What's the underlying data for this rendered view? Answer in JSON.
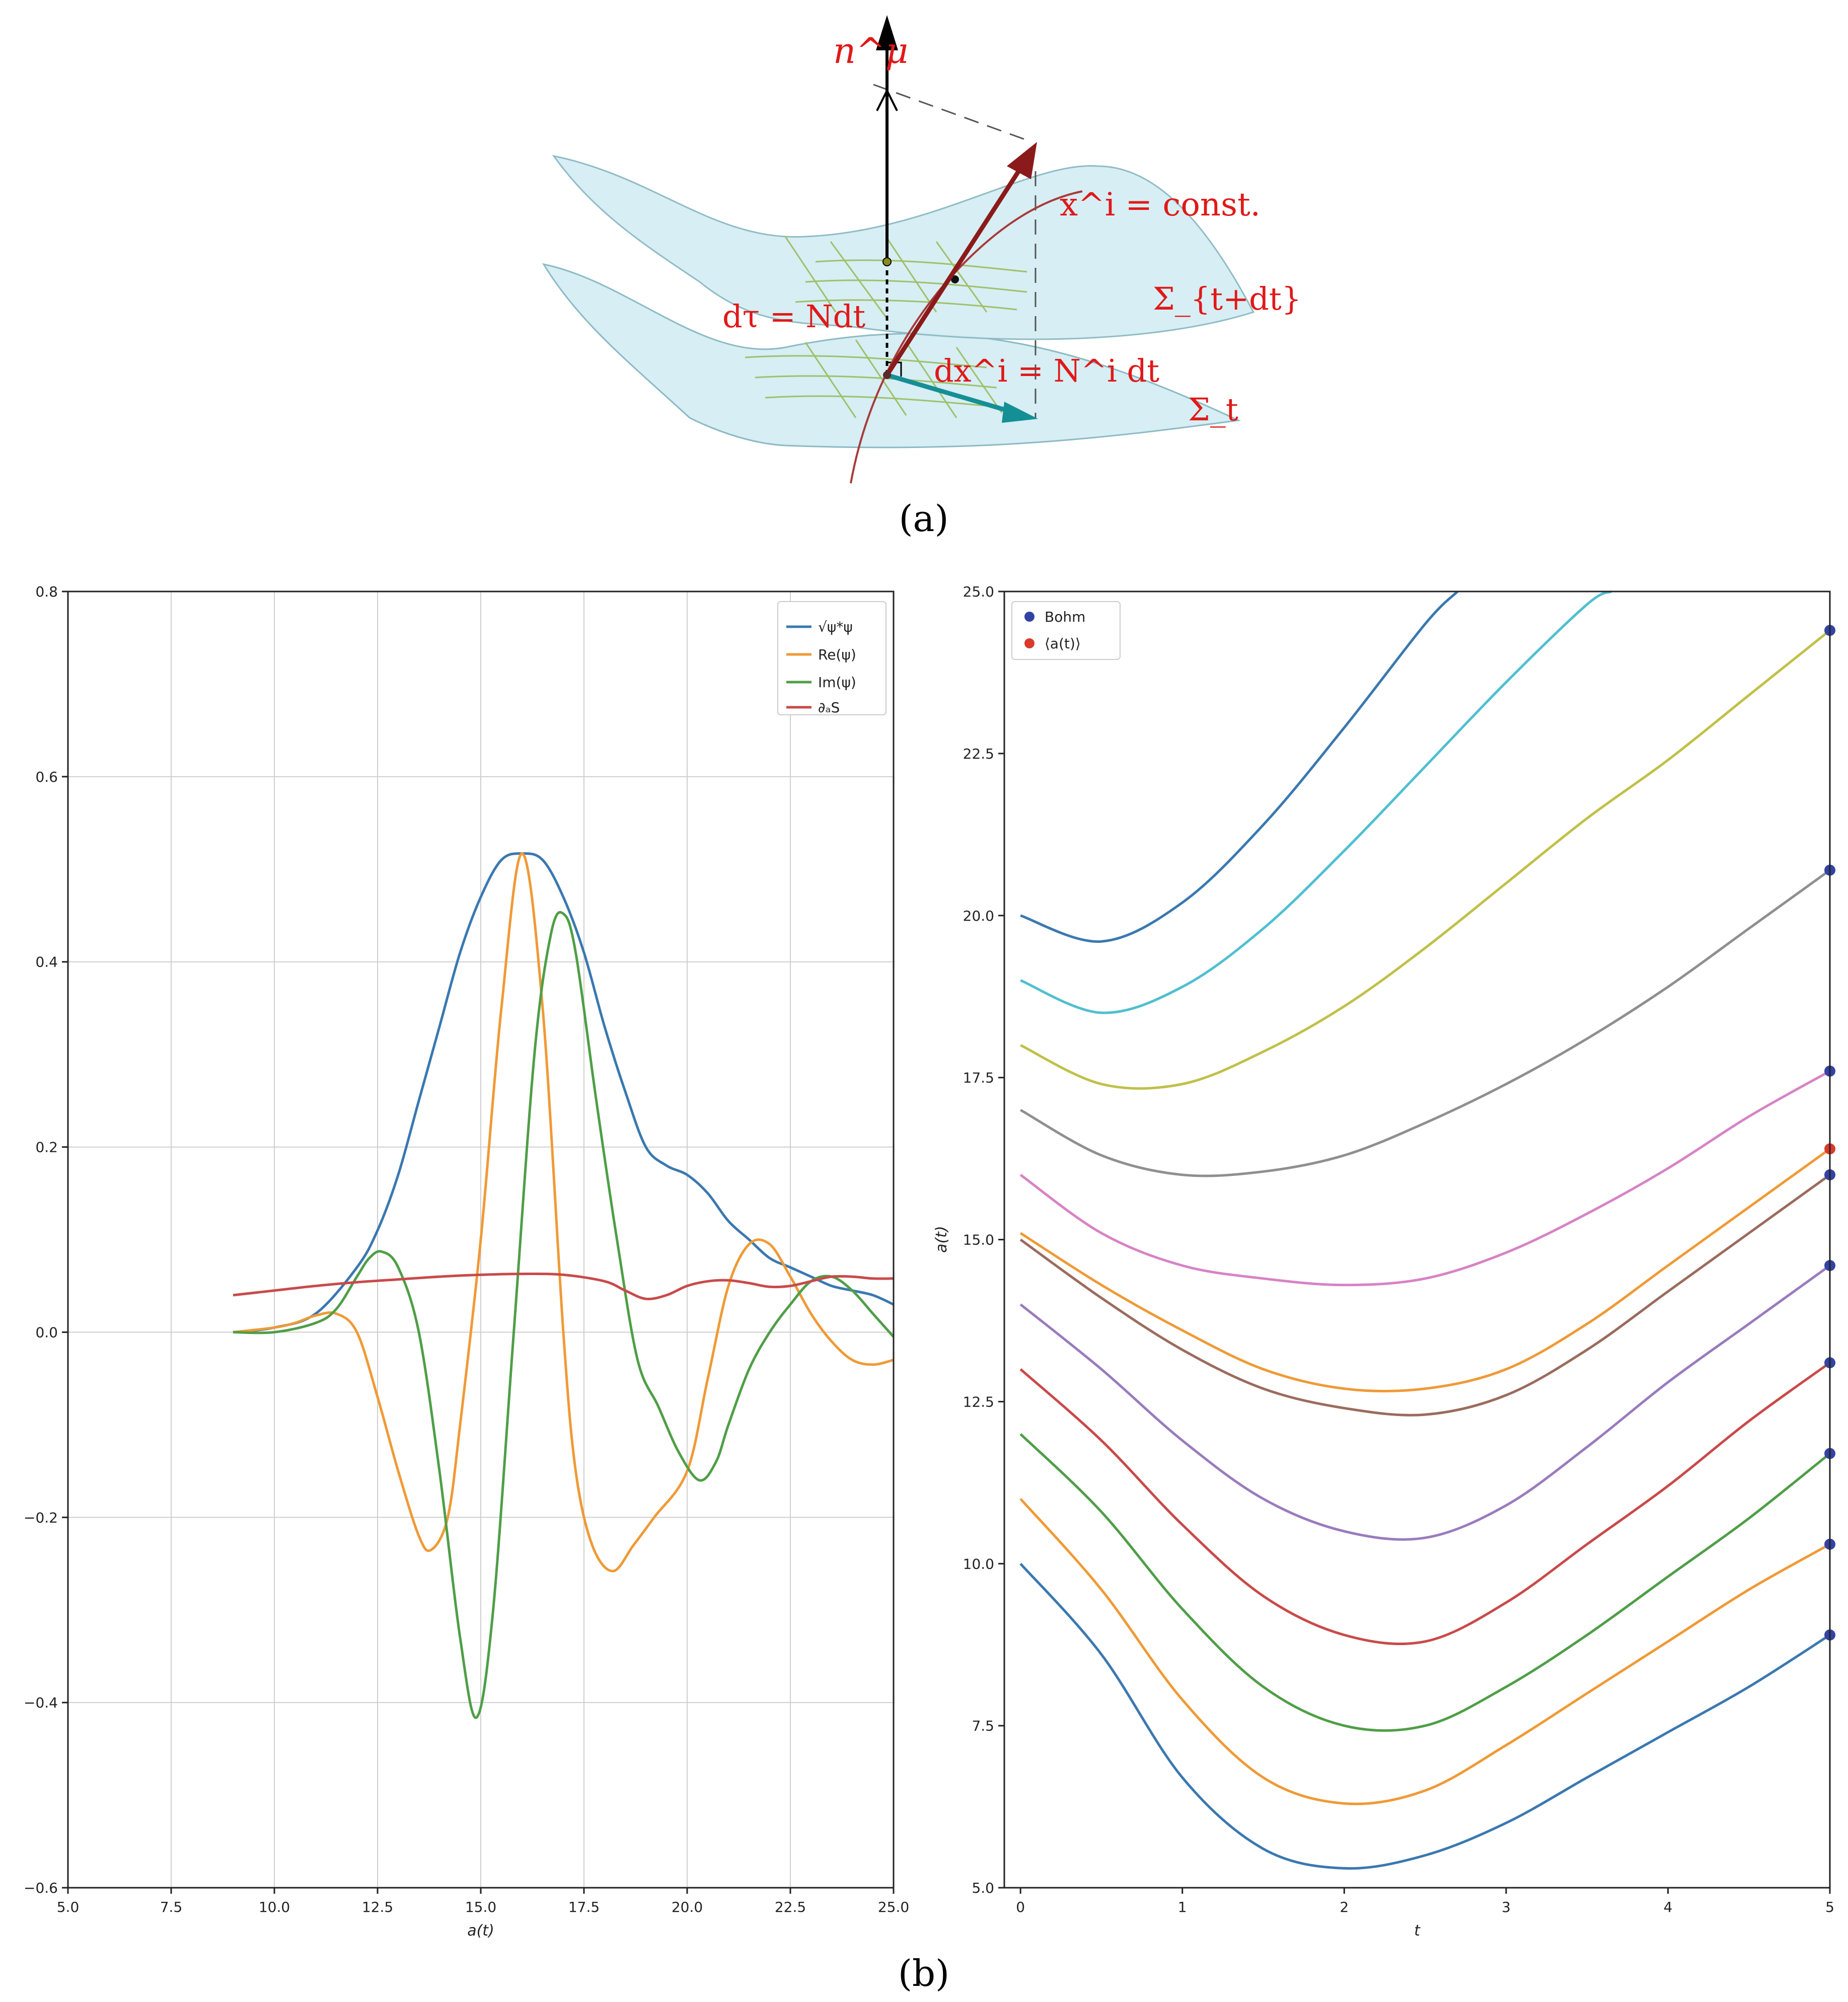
{
  "panel_labels": {
    "a": "(a)",
    "b": "(b)"
  },
  "diagram": {
    "labels": {
      "normal": "n^μ",
      "worldline": "x^i = const.",
      "lapse": "dτ = Ndt",
      "shift": "dx^i = N^i dt",
      "sigma_upper": "Σ_{t+dt}",
      "sigma_lower": "Σ_t"
    },
    "colors": {
      "surface": "#d6eef4",
      "grid": "#9fc06a",
      "red_arrow": "#8b1a1a",
      "teal_arrow": "#148f95",
      "label": "#e01919"
    }
  },
  "chart_data": [
    {
      "type": "line",
      "xlabel": "a(t)",
      "ylabel": "",
      "xlim": [
        5.0,
        25.0
      ],
      "ylim": [
        -0.6,
        0.8
      ],
      "xticks": [
        "5.0",
        "7.5",
        "10.0",
        "12.5",
        "15.0",
        "17.5",
        "20.0",
        "22.5",
        "25.0"
      ],
      "yticks": [
        "−0.6",
        "−0.4",
        "−0.2",
        "0.0",
        "0.2",
        "0.4",
        "0.6",
        "0.8"
      ],
      "grid": true,
      "legend": "top-right",
      "series": [
        {
          "name": "√ψ*ψ",
          "color": "#3a78b0",
          "x": [
            9,
            10,
            11,
            12,
            12.5,
            13,
            13.5,
            14,
            14.5,
            15,
            15.5,
            16,
            16.5,
            17,
            17.5,
            18,
            18.5,
            19,
            19.5,
            20,
            20.5,
            21,
            21.5,
            22,
            22.5,
            23,
            23.5,
            24,
            24.5,
            25
          ],
          "y": [
            0.0,
            0.005,
            0.02,
            0.07,
            0.11,
            0.17,
            0.25,
            0.33,
            0.41,
            0.47,
            0.51,
            0.517,
            0.51,
            0.47,
            0.41,
            0.33,
            0.26,
            0.2,
            0.18,
            0.17,
            0.15,
            0.12,
            0.1,
            0.08,
            0.07,
            0.06,
            0.05,
            0.045,
            0.04,
            0.03
          ]
        },
        {
          "name": "Re(ψ)",
          "color": "#ef9a36",
          "x": [
            9,
            10,
            10.5,
            11,
            11.5,
            12,
            12.5,
            13,
            13.5,
            13.8,
            14.2,
            14.5,
            15,
            15.5,
            16,
            16.5,
            17,
            17.3,
            17.7,
            18.2,
            18.7,
            19.2,
            20,
            20.5,
            21,
            21.5,
            22,
            22.5,
            23,
            23.5,
            24,
            24.5,
            25
          ],
          "y": [
            0.0,
            0.005,
            0.01,
            0.018,
            0.02,
            0.0,
            -0.07,
            -0.15,
            -0.22,
            -0.235,
            -0.2,
            -0.1,
            0.1,
            0.35,
            0.517,
            0.35,
            0.0,
            -0.15,
            -0.23,
            -0.258,
            -0.23,
            -0.2,
            -0.15,
            -0.05,
            0.05,
            0.095,
            0.095,
            0.06,
            0.02,
            -0.01,
            -0.03,
            -0.035,
            -0.03
          ]
        },
        {
          "name": "Im(ψ)",
          "color": "#4f9e47",
          "x": [
            9,
            10,
            11,
            11.5,
            12,
            12.3,
            12.6,
            13,
            13.5,
            14,
            14.5,
            14.9,
            15.3,
            15.8,
            16.3,
            16.7,
            17,
            17.3,
            17.8,
            18.3,
            18.8,
            19.3,
            19.8,
            20.3,
            20.7,
            21,
            21.5,
            22,
            22.5,
            23,
            23.5,
            24,
            24.5,
            25
          ],
          "y": [
            0.0,
            0.0,
            0.01,
            0.025,
            0.06,
            0.08,
            0.087,
            0.07,
            0.0,
            -0.15,
            -0.33,
            -0.416,
            -0.3,
            0.0,
            0.3,
            0.43,
            0.452,
            0.41,
            0.25,
            0.1,
            -0.03,
            -0.08,
            -0.13,
            -0.16,
            -0.14,
            -0.1,
            -0.04,
            0.0,
            0.03,
            0.055,
            0.06,
            0.045,
            0.02,
            -0.005
          ]
        },
        {
          "name": "∂ₐS",
          "color": "#c94a4a",
          "x": [
            9,
            10,
            11,
            12,
            13,
            14,
            15,
            16,
            17,
            18,
            18.5,
            19,
            19.5,
            20,
            20.5,
            21,
            21.5,
            22,
            22.5,
            23,
            23.5,
            24,
            24.5,
            25
          ],
          "y": [
            0.04,
            0.045,
            0.05,
            0.054,
            0.057,
            0.06,
            0.062,
            0.063,
            0.062,
            0.055,
            0.045,
            0.036,
            0.04,
            0.05,
            0.055,
            0.056,
            0.053,
            0.049,
            0.05,
            0.055,
            0.06,
            0.06,
            0.058,
            0.058
          ]
        }
      ]
    },
    {
      "type": "line",
      "xlabel": "t",
      "ylabel": "a(t)",
      "xlim": [
        -0.1,
        5.0
      ],
      "ylim": [
        5.0,
        25.0
      ],
      "xticks": [
        "0",
        "1",
        "2",
        "3",
        "4",
        "5"
      ],
      "yticks": [
        "5.0",
        "7.5",
        "10.0",
        "12.5",
        "15.0",
        "17.5",
        "20.0",
        "22.5",
        "25.0"
      ],
      "grid": false,
      "legend": "top-left",
      "legend_entries": [
        {
          "name": "Bohm",
          "color": "#3443a3"
        },
        {
          "name": "⟨a(t)⟩",
          "color": "#d93a2a"
        }
      ],
      "trajectories": [
        {
          "color": "#3a78b0",
          "t": [
            0,
            0.5,
            1.0,
            1.5,
            2.0,
            2.5,
            3.0,
            3.5,
            4.0,
            4.5,
            5.0
          ],
          "a": [
            10.0,
            8.6,
            6.7,
            5.6,
            5.3,
            5.5,
            6.0,
            6.7,
            7.4,
            8.1,
            8.9
          ]
        },
        {
          "color": "#ef9a36",
          "t": [
            0,
            0.5,
            1.0,
            1.5,
            2.0,
            2.5,
            3.0,
            3.5,
            4.0,
            4.5,
            5.0
          ],
          "a": [
            11.0,
            9.6,
            7.9,
            6.7,
            6.3,
            6.5,
            7.2,
            8.0,
            8.8,
            9.6,
            10.3
          ]
        },
        {
          "color": "#4f9e47",
          "t": [
            0,
            0.5,
            1.0,
            1.5,
            2.0,
            2.5,
            3.0,
            3.5,
            4.0,
            4.5,
            5.0
          ],
          "a": [
            12.0,
            10.8,
            9.3,
            8.1,
            7.5,
            7.5,
            8.1,
            8.9,
            9.8,
            10.7,
            11.7
          ]
        },
        {
          "color": "#c94a4a",
          "t": [
            0,
            0.5,
            1.0,
            1.5,
            2.0,
            2.5,
            3.0,
            3.5,
            4.0,
            4.5,
            5.0
          ],
          "a": [
            13.0,
            11.9,
            10.6,
            9.5,
            8.9,
            8.8,
            9.4,
            10.3,
            11.2,
            12.2,
            13.1
          ]
        },
        {
          "color": "#9a7bbd",
          "t": [
            0,
            0.5,
            1.0,
            1.5,
            2.0,
            2.5,
            3.0,
            3.5,
            4.0,
            4.5,
            5.0
          ],
          "a": [
            14.0,
            13.0,
            11.9,
            11.0,
            10.5,
            10.4,
            10.9,
            11.8,
            12.8,
            13.7,
            14.6
          ]
        },
        {
          "color": "#9b6b5e",
          "t": [
            0,
            0.5,
            1.0,
            1.5,
            2.0,
            2.5,
            3.0,
            3.5,
            4.0,
            4.5,
            5.0
          ],
          "a": [
            15.0,
            14.1,
            13.3,
            12.7,
            12.4,
            12.3,
            12.6,
            13.3,
            14.2,
            15.1,
            16.0
          ]
        },
        {
          "color": "#ef9a36",
          "t": [
            0,
            0.5,
            1.0,
            1.5,
            2.0,
            2.5,
            3.0,
            3.5,
            4.0,
            4.5,
            5.0
          ],
          "a": [
            15.1,
            14.3,
            13.6,
            13.0,
            12.7,
            12.7,
            13.0,
            13.7,
            14.6,
            15.5,
            16.4
          ]
        },
        {
          "color": "#d783c5",
          "t": [
            0,
            0.5,
            1.0,
            1.5,
            2.0,
            2.5,
            3.0,
            3.5,
            4.0,
            4.5,
            5.0
          ],
          "a": [
            16.0,
            15.1,
            14.6,
            14.4,
            14.3,
            14.4,
            14.8,
            15.4,
            16.1,
            16.9,
            17.6
          ]
        },
        {
          "color": "#8f8f8f",
          "t": [
            0,
            0.5,
            1.0,
            1.5,
            2.0,
            2.5,
            3.0,
            3.5,
            4.0,
            4.5,
            5.0
          ],
          "a": [
            17.0,
            16.3,
            16.0,
            16.05,
            16.3,
            16.8,
            17.4,
            18.1,
            18.9,
            19.8,
            20.7
          ]
        },
        {
          "color": "#c0c04a",
          "t": [
            0,
            0.5,
            1.0,
            1.5,
            2.0,
            2.5,
            3.0,
            3.5,
            4.0,
            4.5,
            5.0
          ],
          "a": [
            18.0,
            17.4,
            17.4,
            17.9,
            18.6,
            19.5,
            20.5,
            21.5,
            22.4,
            23.4,
            24.4
          ]
        },
        {
          "color": "#4fbfcf",
          "t": [
            0,
            0.5,
            1.0,
            1.5,
            2.0,
            2.5,
            3.0,
            3.5,
            3.65
          ],
          "a": [
            19.0,
            18.5,
            18.9,
            19.8,
            21.0,
            22.3,
            23.6,
            24.8,
            25.0
          ]
        },
        {
          "color": "#3a78b0",
          "t": [
            0,
            0.5,
            1.0,
            1.5,
            2.0,
            2.5,
            2.7
          ],
          "a": [
            20.0,
            19.6,
            20.2,
            21.4,
            22.9,
            24.5,
            25.0
          ]
        }
      ],
      "bohm_points": {
        "t": 5.0,
        "a": [
          8.9,
          10.3,
          11.7,
          13.1,
          14.6,
          16.0,
          17.6,
          20.7,
          24.4
        ]
      },
      "mean_point": {
        "t": 5.0,
        "a": 16.4
      }
    }
  ]
}
